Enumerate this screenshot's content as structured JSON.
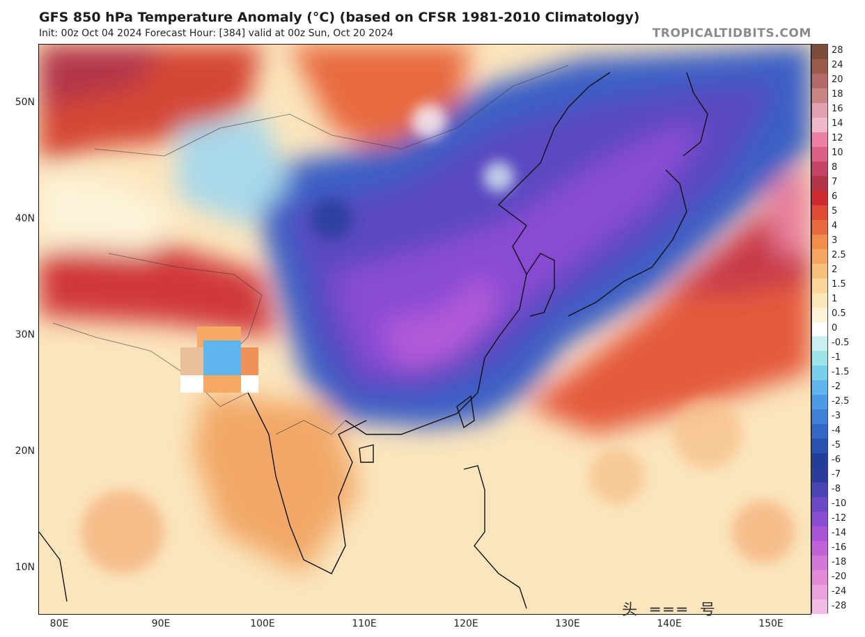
{
  "header": {
    "title": "GFS 850 hPa Temperature Anomaly (°C) (based on CFSR 1981-2010 Climatology)",
    "subtitle": "Init: 00z Oct 04 2024   Forecast Hour: [384]   valid at 00z Sun, Oct 20 2024",
    "brand": "TROPICALTIDBITS.COM"
  },
  "map": {
    "lat_labels": [
      "50N",
      "40N",
      "30N",
      "20N",
      "10N"
    ],
    "lon_labels": [
      "80E",
      "90E",
      "100E",
      "110E",
      "120E",
      "130E",
      "140E",
      "150E"
    ],
    "features": {
      "cold_anomaly_region": "East Asia / China / Korea / Japan",
      "warm_anomaly_region": "Pacific east of Japan, Central Asia, Indochina"
    }
  },
  "colorbar": {
    "levels": [
      {
        "label": "28",
        "color": "#7d4b3c"
      },
      {
        "label": "24",
        "color": "#9b5a4b"
      },
      {
        "label": "20",
        "color": "#b56a6a"
      },
      {
        "label": "18",
        "color": "#c98585"
      },
      {
        "label": "16",
        "color": "#e0a0b0"
      },
      {
        "label": "14",
        "color": "#f0b8cc"
      },
      {
        "label": "12",
        "color": "#ee7fa5"
      },
      {
        "label": "10",
        "color": "#dc5f86"
      },
      {
        "label": "8",
        "color": "#c44466"
      },
      {
        "label": "7",
        "color": "#b23448"
      },
      {
        "label": "6",
        "color": "#cc2c2f"
      },
      {
        "label": "5",
        "color": "#e04a35"
      },
      {
        "label": "4",
        "color": "#ea6a3f"
      },
      {
        "label": "3",
        "color": "#f08c4c"
      },
      {
        "label": "2.5",
        "color": "#f4a560"
      },
      {
        "label": "2",
        "color": "#f8be7c"
      },
      {
        "label": "1.5",
        "color": "#fbd59c"
      },
      {
        "label": "1",
        "color": "#fce6b8"
      },
      {
        "label": "0.5",
        "color": "#fdf3d8"
      },
      {
        "label": "0",
        "color": "#ffffff"
      },
      {
        "label": "-0.5",
        "color": "#c8f0ee"
      },
      {
        "label": "-1",
        "color": "#9ee2ea"
      },
      {
        "label": "-1.5",
        "color": "#78d0ea"
      },
      {
        "label": "-2",
        "color": "#5fb6ec"
      },
      {
        "label": "-2.5",
        "color": "#4d9be6"
      },
      {
        "label": "-3",
        "color": "#3f80d8"
      },
      {
        "label": "-4",
        "color": "#3468c6"
      },
      {
        "label": "-5",
        "color": "#2a52b0"
      },
      {
        "label": "-6",
        "color": "#233e98"
      },
      {
        "label": "-7",
        "color": "#2c3c9c"
      },
      {
        "label": "-8",
        "color": "#4a44b4"
      },
      {
        "label": "-10",
        "color": "#6a48c8"
      },
      {
        "label": "-12",
        "color": "#8a4cd4"
      },
      {
        "label": "-14",
        "color": "#a854d8"
      },
      {
        "label": "-16",
        "color": "#c262d8"
      },
      {
        "label": "-18",
        "color": "#d478d8"
      },
      {
        "label": "-20",
        "color": "#e08ad8"
      },
      {
        "label": "-24",
        "color": "#eaa2dc"
      },
      {
        "label": "-28",
        "color": "#f2bce4"
      }
    ]
  },
  "watermark": "头 ═══ 号"
}
